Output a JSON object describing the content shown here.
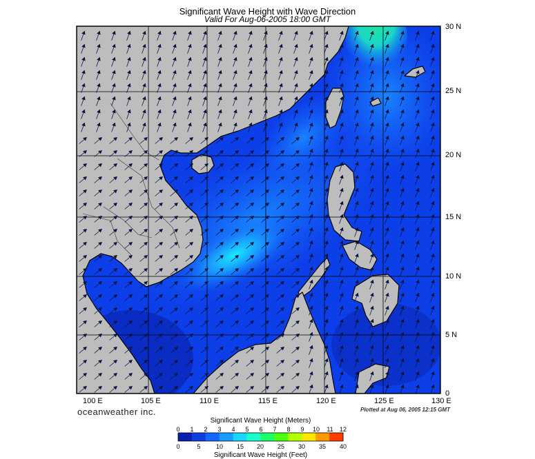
{
  "title": "Significant Wave Height with Wave Direction",
  "subtitle": "Valid For Aug-06-2005 18:00 GMT",
  "x_axis_labels": [
    "100 E",
    "105 E",
    "110 E",
    "115 E",
    "120 E",
    "125 E",
    "130 E"
  ],
  "y_axis_labels": [
    "30 N",
    "25 N",
    "20 N",
    "15 N",
    "10 N",
    "5 N",
    "0"
  ],
  "brand": "oceanweather inc.",
  "plotted_note": "Plotted at Aug 06, 2005 12:15 GMT",
  "colorbar": {
    "title_top": "Significant Wave Height (Meters)",
    "title_bottom": "Significant Wave Height (Feet)",
    "meter_ticks": [
      "0",
      "1",
      "2",
      "3",
      "4",
      "5",
      "6",
      "7",
      "8",
      "9",
      "10",
      "11",
      "12"
    ],
    "feet_ticks": [
      "0",
      "5",
      "10",
      "15",
      "20",
      "25",
      "30",
      "35",
      "40"
    ],
    "colors": [
      "#0a1fb0",
      "#0f3ee0",
      "#1466ff",
      "#1a9bff",
      "#1ad6ff",
      "#1affc8",
      "#1aff6a",
      "#4cff10",
      "#b4ff00",
      "#ffe600",
      "#ff9a00",
      "#ff3c00"
    ]
  },
  "map_colors": {
    "land": "#bdbdbd",
    "water_base": "#0d3fe8",
    "water_deep": "#0b28b8",
    "water_mid": "#1866ff",
    "water_light": "#1aa6ff",
    "water_peak": "#1af2ff",
    "water_green": "#1ee89a",
    "grid": "#000000",
    "arrows": "#0a1640"
  }
}
